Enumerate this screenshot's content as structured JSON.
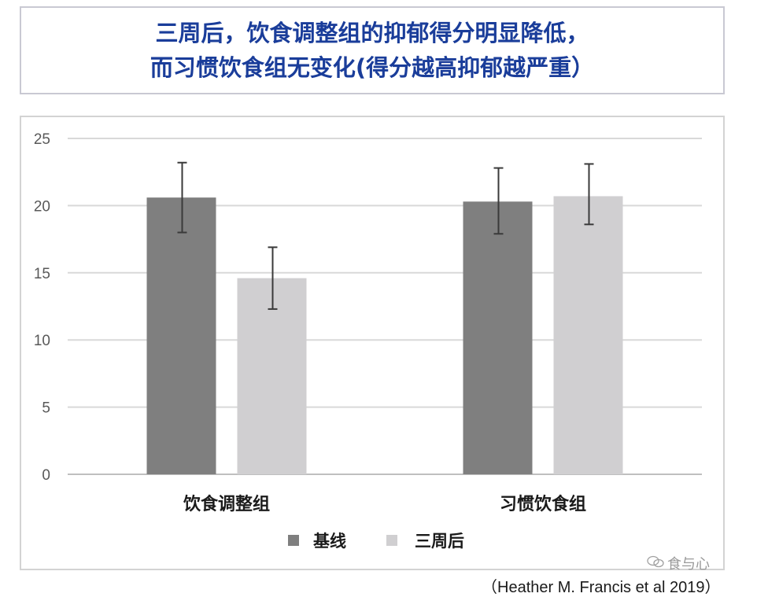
{
  "title": {
    "line1": "三周后，饮食调整组的抑郁得分明显降低，",
    "line2": "而习惯饮食组无变化(得分越高抑郁越严重）"
  },
  "chart_data": {
    "type": "bar",
    "categories": [
      "饮食调整组",
      "习惯饮食组"
    ],
    "series": [
      {
        "name": "基线",
        "values": [
          20.6,
          20.3
        ],
        "error_low": [
          18.0,
          17.9
        ],
        "error_high": [
          23.2,
          22.8
        ],
        "color": "#7f7f7f"
      },
      {
        "name": "三周后",
        "values": [
          14.6,
          20.7
        ],
        "error_low": [
          12.3,
          18.6
        ],
        "error_high": [
          16.9,
          23.1
        ],
        "color": "#d0cfd1"
      }
    ],
    "yticks": [
      "0",
      "5",
      "10",
      "15",
      "20",
      "25"
    ],
    "ylim": [
      0,
      25
    ],
    "grid": true,
    "legend_position": "bottom"
  },
  "watermark": "食与心",
  "source": "（Heather M. Francis et al 2019）"
}
